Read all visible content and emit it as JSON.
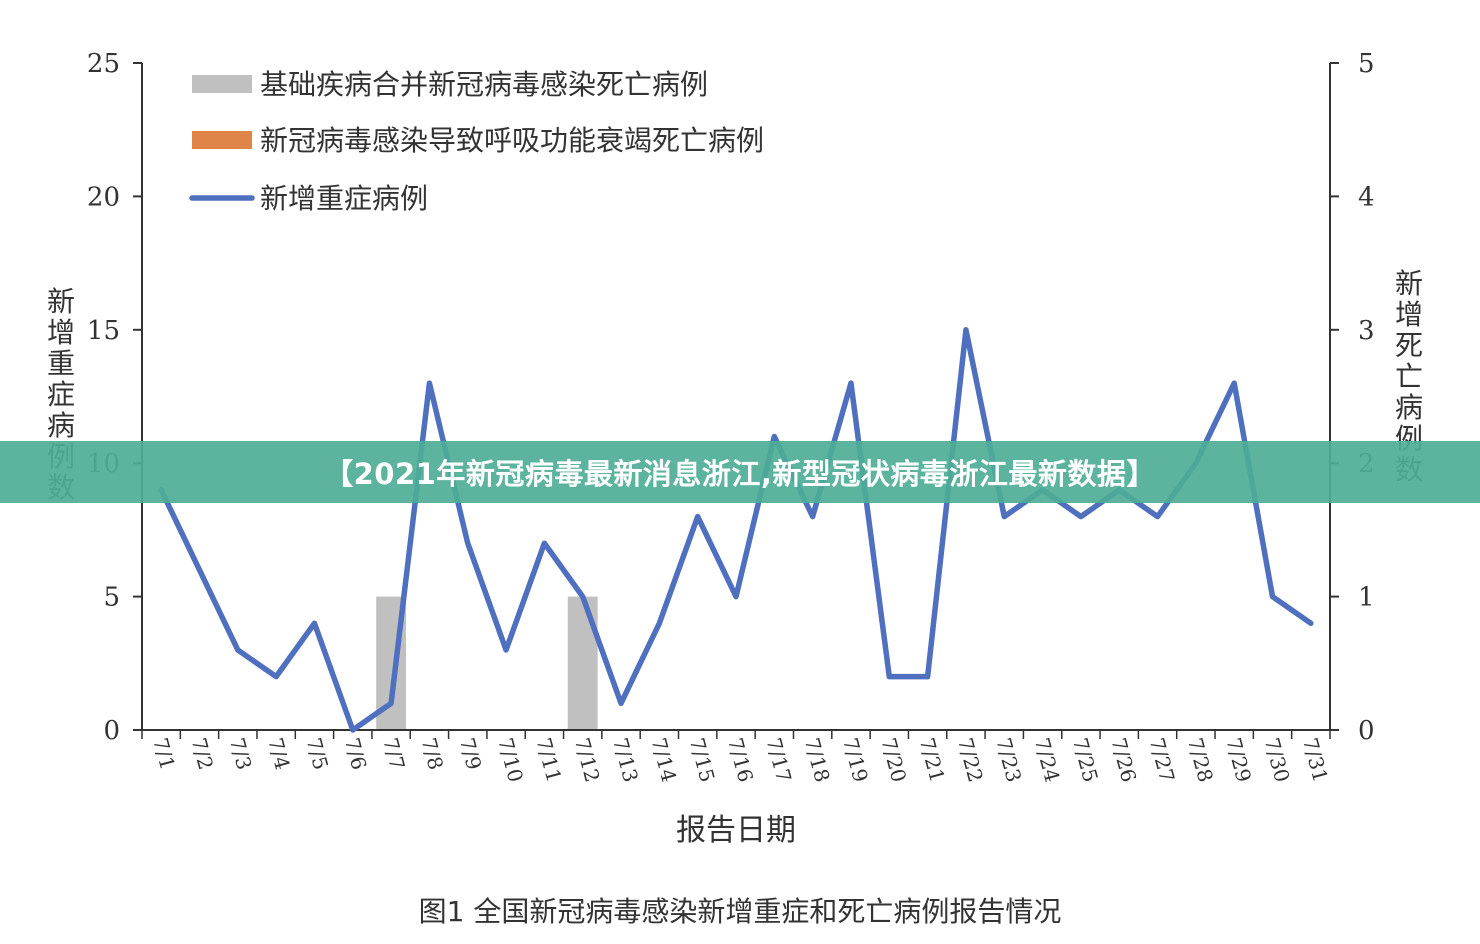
{
  "banner": {
    "text": "【2021年新冠病毒最新消息浙江,新型冠状病毒浙江最新数据】"
  },
  "caption": "图1 全国新冠病毒感染新增重症和死亡病例报告情况",
  "colors": {
    "bar_basic": "#c0c0c0",
    "bar_resp": "#e0854a",
    "line": "#4f6fbf",
    "axis": "#333333",
    "banner_bg": "#4eac96"
  },
  "chart_data": {
    "type": "bar+line",
    "xlabel": "报告日期",
    "ylabel_left": "新增重症病例数",
    "ylabel_right": "新增死亡病例数",
    "ylim_left": [
      0,
      25
    ],
    "ylim_right": [
      0,
      5
    ],
    "yticks_left": [
      0,
      5,
      10,
      15,
      20,
      25
    ],
    "yticks_right": [
      0,
      1,
      2,
      3,
      4,
      5
    ],
    "grid": false,
    "legend_position": "top-left",
    "categories": [
      "7/1",
      "7/2",
      "7/3",
      "7/4",
      "7/5",
      "7/6",
      "7/7",
      "7/8",
      "7/9",
      "7/10",
      "7/11",
      "7/12",
      "7/13",
      "7/14",
      "7/15",
      "7/16",
      "7/17",
      "7/18",
      "7/19",
      "7/20",
      "7/21",
      "7/22",
      "7/23",
      "7/24",
      "7/25",
      "7/26",
      "7/27",
      "7/28",
      "7/29",
      "7/30",
      "7/31"
    ],
    "series": [
      {
        "name": "基础疾病合并新冠病毒感染死亡病例",
        "type": "bar",
        "axis": "right",
        "values": [
          0,
          0,
          0,
          0,
          0,
          0,
          1,
          0,
          0,
          0,
          0,
          1,
          0,
          0,
          0,
          0,
          0,
          0,
          0,
          0,
          0,
          0,
          0,
          0,
          0,
          0,
          0,
          0,
          0,
          0,
          0
        ]
      },
      {
        "name": "新冠病毒感染导致呼吸功能衰竭死亡病例",
        "type": "bar",
        "axis": "right",
        "values": [
          0,
          0,
          0,
          0,
          0,
          0,
          0,
          0,
          0,
          0,
          0,
          0,
          0,
          0,
          0,
          0,
          0,
          0,
          0,
          0,
          0,
          0,
          0,
          0,
          0,
          0,
          0,
          0,
          0,
          0,
          0
        ]
      },
      {
        "name": "新增重症病例",
        "type": "line",
        "axis": "left",
        "values": [
          9,
          6,
          3,
          2,
          4,
          0,
          1,
          13,
          7,
          3,
          7,
          5,
          1,
          4,
          8,
          5,
          11,
          8,
          13,
          2,
          2,
          15,
          8,
          9,
          8,
          9,
          8,
          10,
          13,
          5,
          4
        ]
      }
    ]
  }
}
